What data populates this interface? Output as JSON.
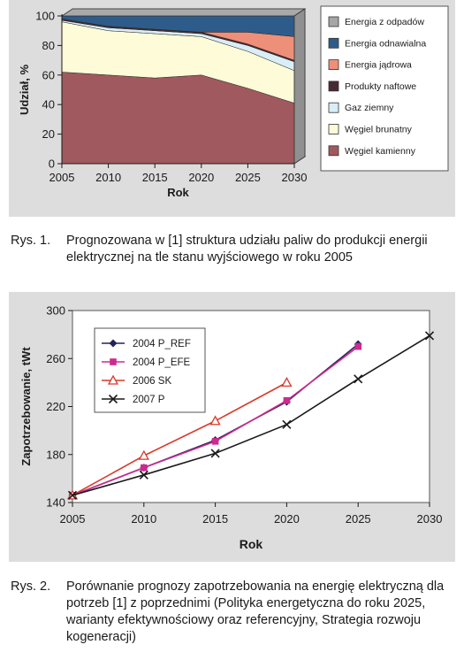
{
  "figure1": {
    "caption_number": "Rys. 1.",
    "caption_text": "Prognozowana w [1] struktura udziału paliw do produkcji energii elektrycznej na tle stanu wyjściowego w roku 2005"
  },
  "figure2": {
    "caption_number": "Rys. 2.",
    "caption_text": "Porównanie prognozy zapotrzebowania na energię elektryczną dla potrzeb [1] z poprzednimi (Polityka energetyczna do roku 2025, warianty efektywnościowy oraz referencyjny, Strategia rozwoju kogeneracji)"
  },
  "colors": {
    "panel_bg": "#dddddd",
    "wall": "#bdbdbd",
    "wall_top": "#a9a9a9",
    "side": "#909090"
  },
  "chart_data": [
    {
      "type": "area",
      "stacked": true,
      "title": "",
      "xlabel": "Rok",
      "ylabel": "Udział, %",
      "x": [
        2005,
        2010,
        2015,
        2020,
        2025,
        2030
      ],
      "xlim": [
        2005,
        2030
      ],
      "ylim": [
        0,
        100
      ],
      "yticks": [
        0,
        20,
        40,
        60,
        80,
        100
      ],
      "grid": false,
      "legend": "right",
      "series": [
        {
          "name": "Węgiel kamienny",
          "color": "#a0595e",
          "values": [
            62,
            60,
            58,
            60,
            51,
            41
          ]
        },
        {
          "name": "Węgiel brunatny",
          "color": "#fdfbd8",
          "values": [
            34,
            30,
            30,
            26,
            25,
            22
          ]
        },
        {
          "name": "Gaz ziemny",
          "color": "#d9eef6",
          "values": [
            1,
            2,
            2,
            2,
            4,
            6
          ]
        },
        {
          "name": "Produkty naftowe",
          "color": "#4a2a32",
          "values": [
            1,
            1,
            1,
            1,
            1,
            1
          ]
        },
        {
          "name": "Energia jądrowa",
          "color": "#ee8f79",
          "values": [
            0,
            0,
            0,
            0,
            8,
            16
          ]
        },
        {
          "name": "Energia odnawialna",
          "color": "#2e5c8a",
          "values": [
            2,
            7,
            9,
            11,
            11,
            14
          ]
        },
        {
          "name": "Energia z odpadów",
          "color": "#a6a6a6",
          "values": [
            0,
            0,
            0,
            0,
            0,
            0
          ]
        }
      ]
    },
    {
      "type": "line",
      "title": "",
      "xlabel": "Rok",
      "ylabel": "Zapotrzebowanie, tWt",
      "x": [
        2005,
        2010,
        2015,
        2020,
        2025,
        2030
      ],
      "xlim": [
        2005,
        2030
      ],
      "ylim": [
        140,
        300
      ],
      "yticks": [
        140,
        180,
        220,
        260,
        300
      ],
      "grid": false,
      "legend": "top-left",
      "series": [
        {
          "name": "2004 P_REF",
          "color": "#23235a",
          "marker": "diamond",
          "values": [
            146,
            169,
            192,
            224,
            272,
            null
          ]
        },
        {
          "name": "2004 P_EFE",
          "color": "#cc2a8f",
          "marker": "square",
          "values": [
            146,
            169,
            191,
            225,
            270,
            null
          ]
        },
        {
          "name": "2006 SK",
          "color": "#d9392c",
          "marker": "triangle",
          "values": [
            146,
            179,
            208,
            240,
            null,
            null
          ]
        },
        {
          "name": "2007 P",
          "color": "#1a1a1a",
          "marker": "x",
          "values": [
            146,
            163,
            181,
            205,
            243,
            279
          ]
        }
      ]
    }
  ]
}
